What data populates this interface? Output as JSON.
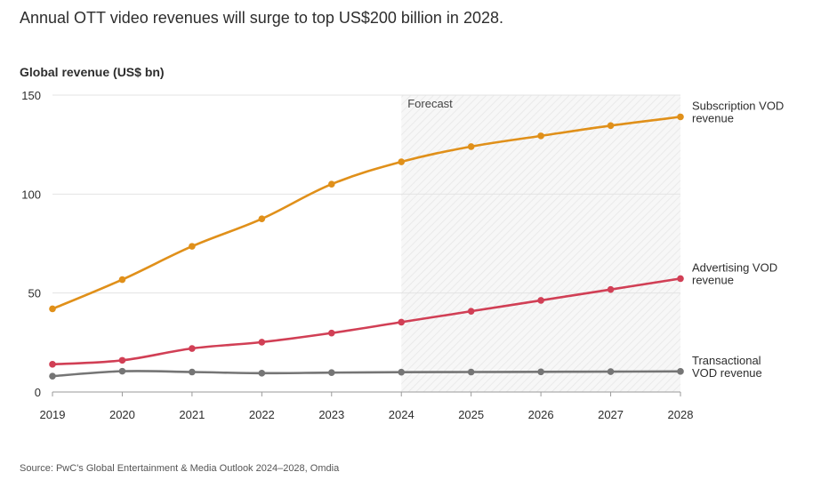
{
  "header": {
    "title": "Annual OTT video revenues will surge to top US$200 billion in 2028."
  },
  "footer": {
    "source": "Source: PwC's Global Entertainment & Media Outlook 2024–2028, Omdia"
  },
  "chart_data": {
    "type": "line",
    "title": "Annual OTT video revenues will surge to top US$200 billion in 2028.",
    "ylabel": "Global revenue (US$ bn)",
    "xlabel": "",
    "x": [
      "2019",
      "2020",
      "2021",
      "2022",
      "2023",
      "2024",
      "2025",
      "2026",
      "2027",
      "2028"
    ],
    "ylim": [
      0,
      150
    ],
    "yticks": [
      "0",
      "50",
      "100",
      "150"
    ],
    "grid": "horizontal",
    "forecast": {
      "label": "Forecast",
      "from": "2024",
      "to": "2028"
    },
    "series": [
      {
        "name": "Subscription VOD revenue",
        "label_lines": [
          "Subscription VOD",
          "revenue"
        ],
        "color": "#e0901a",
        "values": [
          42,
          56.8,
          73.6,
          87.5,
          105,
          116.3,
          124,
          129.4,
          134.6,
          139
        ]
      },
      {
        "name": "Advertising VOD revenue",
        "label_lines": [
          "Advertising VOD",
          "revenue"
        ],
        "color": "#d13f55",
        "values": [
          14,
          16,
          22,
          25.2,
          29.8,
          35.3,
          40.8,
          46.3,
          51.8,
          57.3
        ]
      },
      {
        "name": "Transactional VOD revenue",
        "label_lines": [
          "Transactional",
          "VOD revenue"
        ],
        "color": "#757575",
        "values": [
          8,
          10.5,
          10.1,
          9.5,
          9.8,
          10,
          10.1,
          10.2,
          10.3,
          10.4
        ]
      }
    ]
  }
}
